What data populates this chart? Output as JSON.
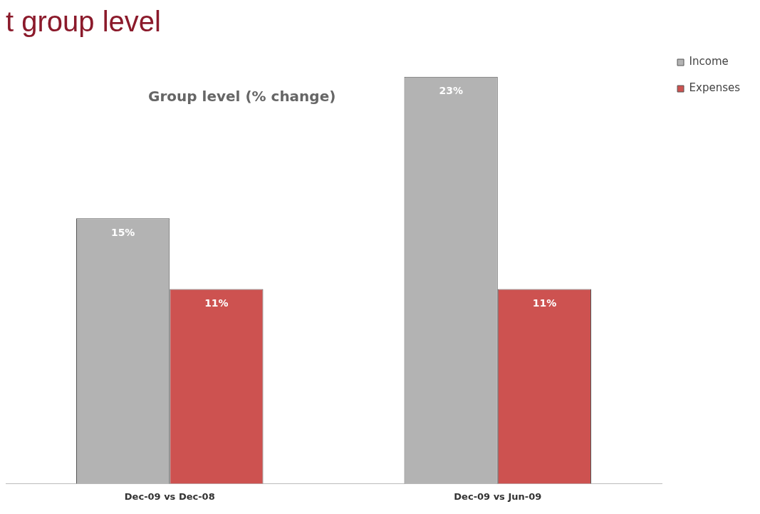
{
  "chart_data": {
    "type": "bar",
    "title": "t group level",
    "subtitle": "Group level (% change)",
    "categories": [
      "Dec-09 vs Dec-08",
      "Dec-09 vs Jun-09"
    ],
    "series": [
      {
        "name": "Income",
        "color": "#b3b3b3",
        "values": [
          15,
          23
        ],
        "value_labels": [
          "15%",
          "23%"
        ]
      },
      {
        "name": "Expenses",
        "color": "#cd5250",
        "values": [
          11,
          11
        ],
        "value_labels": [
          "11%",
          "11%"
        ]
      }
    ],
    "legend": "top right",
    "grid": false
  }
}
